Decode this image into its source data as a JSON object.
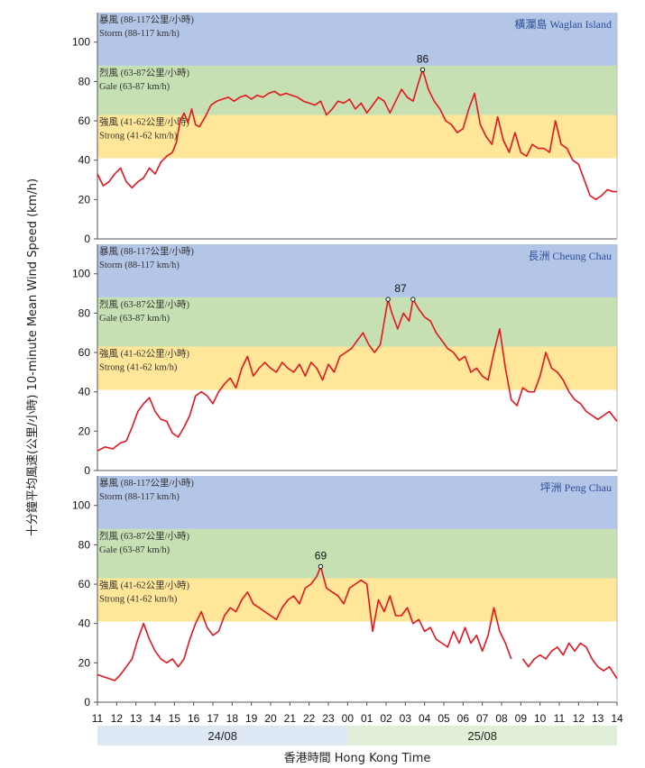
{
  "chart_data": {
    "type": "line",
    "ylabel": "十分鐘平均風速(公里/小時) 10-minute Mean Wind Speed (km/h)",
    "xlabel": "香港時間  Hong Kong Time",
    "x_ticks": [
      "11",
      "12",
      "13",
      "14",
      "15",
      "16",
      "17",
      "18",
      "19",
      "20",
      "21",
      "22",
      "23",
      "00",
      "01",
      "02",
      "03",
      "04",
      "05",
      "06",
      "07",
      "08",
      "09",
      "10",
      "11",
      "12",
      "13",
      "14"
    ],
    "dates": [
      "24/08",
      "25/08"
    ],
    "ylim": [
      0,
      115
    ],
    "y_ticks": [
      "0",
      "20",
      "40",
      "60",
      "80",
      "100"
    ],
    "bands": [
      {
        "zh": "暴風 (88-117公里/小時)",
        "en": "Storm (88-117 km/h)",
        "from": 88,
        "to": 117,
        "color": "#b4c6e7"
      },
      {
        "zh": "烈風 (63-87公里/小時)",
        "en": "Gale (63-87 km/h)",
        "from": 63,
        "to": 88,
        "color": "#c6e0b4"
      },
      {
        "zh": "強風 (41-62公里/小時)",
        "en": "Strong (41-62 km/h)",
        "from": 41,
        "to": 63,
        "color": "#ffe699"
      }
    ],
    "line_color": "#e8141c",
    "panels": [
      {
        "station": "橫瀾島 Waglan Island",
        "peak_label": "86",
        "peaks": [
          {
            "hour": 16.9,
            "value": 86
          }
        ],
        "points": [
          [
            0,
            33
          ],
          [
            0.3,
            27
          ],
          [
            0.6,
            29
          ],
          [
            0.9,
            33
          ],
          [
            1.2,
            36
          ],
          [
            1.5,
            29
          ],
          [
            1.8,
            26
          ],
          [
            2.1,
            29
          ],
          [
            2.4,
            31
          ],
          [
            2.7,
            36
          ],
          [
            3.0,
            33
          ],
          [
            3.3,
            39
          ],
          [
            3.6,
            42
          ],
          [
            3.9,
            44
          ],
          [
            4.1,
            49
          ],
          [
            4.3,
            60
          ],
          [
            4.5,
            64
          ],
          [
            4.7,
            59
          ],
          [
            4.9,
            66
          ],
          [
            5.1,
            58
          ],
          [
            5.3,
            57
          ],
          [
            5.6,
            62
          ],
          [
            5.9,
            68
          ],
          [
            6.2,
            70
          ],
          [
            6.5,
            71
          ],
          [
            6.8,
            72
          ],
          [
            7.1,
            70
          ],
          [
            7.4,
            72
          ],
          [
            7.7,
            73
          ],
          [
            8.0,
            71
          ],
          [
            8.3,
            73
          ],
          [
            8.6,
            72
          ],
          [
            8.9,
            74
          ],
          [
            9.2,
            75
          ],
          [
            9.5,
            73
          ],
          [
            9.8,
            74
          ],
          [
            10.1,
            73
          ],
          [
            10.4,
            72
          ],
          [
            10.7,
            70
          ],
          [
            11.0,
            69
          ],
          [
            11.3,
            68
          ],
          [
            11.6,
            70
          ],
          [
            11.9,
            63
          ],
          [
            12.2,
            66
          ],
          [
            12.5,
            70
          ],
          [
            12.8,
            69
          ],
          [
            13.1,
            71
          ],
          [
            13.4,
            66
          ],
          [
            13.7,
            69
          ],
          [
            14.0,
            64
          ],
          [
            14.3,
            68
          ],
          [
            14.6,
            72
          ],
          [
            14.9,
            70
          ],
          [
            15.2,
            64
          ],
          [
            15.5,
            70
          ],
          [
            15.8,
            76
          ],
          [
            16.1,
            72
          ],
          [
            16.4,
            70
          ],
          [
            16.7,
            80
          ],
          [
            16.9,
            86
          ],
          [
            17.2,
            76
          ],
          [
            17.5,
            70
          ],
          [
            17.8,
            66
          ],
          [
            18.1,
            60
          ],
          [
            18.4,
            58
          ],
          [
            18.7,
            54
          ],
          [
            19.0,
            56
          ],
          [
            19.3,
            66
          ],
          [
            19.6,
            74
          ],
          [
            19.9,
            58
          ],
          [
            20.2,
            52
          ],
          [
            20.5,
            48
          ],
          [
            20.8,
            62
          ],
          [
            21.1,
            50
          ],
          [
            21.4,
            44
          ],
          [
            21.7,
            54
          ],
          [
            22.0,
            44
          ],
          [
            22.3,
            42
          ],
          [
            22.6,
            48
          ],
          [
            22.9,
            46
          ],
          [
            23.2,
            46
          ],
          [
            23.5,
            44
          ],
          [
            23.8,
            60
          ],
          [
            24.1,
            48
          ],
          [
            24.4,
            46
          ],
          [
            24.7,
            40
          ],
          [
            25.0,
            38
          ],
          [
            25.3,
            30
          ],
          [
            25.6,
            22
          ],
          [
            25.9,
            20
          ],
          [
            26.2,
            22
          ],
          [
            26.5,
            25
          ],
          [
            26.8,
            24
          ],
          [
            27.0,
            24
          ]
        ]
      },
      {
        "station": "長洲 Cheung Chau",
        "peak_label": "87",
        "peaks": [
          {
            "hour": 15.1,
            "value": 87
          },
          {
            "hour": 16.4,
            "value": 87
          }
        ],
        "points": [
          [
            0,
            10
          ],
          [
            0.4,
            12
          ],
          [
            0.8,
            11
          ],
          [
            1.2,
            14
          ],
          [
            1.5,
            15
          ],
          [
            1.8,
            22
          ],
          [
            2.1,
            30
          ],
          [
            2.4,
            34
          ],
          [
            2.7,
            37
          ],
          [
            3.0,
            30
          ],
          [
            3.3,
            26
          ],
          [
            3.6,
            25
          ],
          [
            3.9,
            19
          ],
          [
            4.2,
            17
          ],
          [
            4.5,
            22
          ],
          [
            4.8,
            28
          ],
          [
            5.1,
            38
          ],
          [
            5.4,
            40
          ],
          [
            5.7,
            38
          ],
          [
            6.0,
            34
          ],
          [
            6.3,
            40
          ],
          [
            6.6,
            44
          ],
          [
            6.9,
            47
          ],
          [
            7.2,
            42
          ],
          [
            7.5,
            52
          ],
          [
            7.8,
            58
          ],
          [
            8.1,
            48
          ],
          [
            8.4,
            52
          ],
          [
            8.7,
            55
          ],
          [
            9.0,
            52
          ],
          [
            9.3,
            50
          ],
          [
            9.6,
            55
          ],
          [
            9.9,
            52
          ],
          [
            10.2,
            50
          ],
          [
            10.5,
            54
          ],
          [
            10.8,
            48
          ],
          [
            11.1,
            55
          ],
          [
            11.4,
            52
          ],
          [
            11.7,
            46
          ],
          [
            12.0,
            54
          ],
          [
            12.3,
            50
          ],
          [
            12.6,
            58
          ],
          [
            12.9,
            60
          ],
          [
            13.2,
            62
          ],
          [
            13.5,
            66
          ],
          [
            13.8,
            70
          ],
          [
            14.1,
            64
          ],
          [
            14.4,
            60
          ],
          [
            14.7,
            64
          ],
          [
            15.1,
            87
          ],
          [
            15.3,
            80
          ],
          [
            15.6,
            72
          ],
          [
            15.9,
            80
          ],
          [
            16.2,
            76
          ],
          [
            16.4,
            87
          ],
          [
            16.7,
            82
          ],
          [
            17.0,
            78
          ],
          [
            17.3,
            76
          ],
          [
            17.6,
            70
          ],
          [
            17.9,
            66
          ],
          [
            18.2,
            62
          ],
          [
            18.5,
            60
          ],
          [
            18.8,
            56
          ],
          [
            19.1,
            58
          ],
          [
            19.4,
            50
          ],
          [
            19.7,
            52
          ],
          [
            20.0,
            48
          ],
          [
            20.3,
            46
          ],
          [
            20.6,
            60
          ],
          [
            20.9,
            72
          ],
          [
            21.2,
            52
          ],
          [
            21.5,
            36
          ],
          [
            21.8,
            33
          ],
          [
            22.1,
            42
          ],
          [
            22.4,
            40
          ],
          [
            22.7,
            40
          ],
          [
            23.0,
            48
          ],
          [
            23.3,
            60
          ],
          [
            23.6,
            52
          ],
          [
            23.9,
            50
          ],
          [
            24.2,
            46
          ],
          [
            24.5,
            40
          ],
          [
            24.8,
            36
          ],
          [
            25.1,
            34
          ],
          [
            25.4,
            30
          ],
          [
            25.7,
            28
          ],
          [
            26.0,
            26
          ],
          [
            26.3,
            28
          ],
          [
            26.6,
            30
          ],
          [
            27.0,
            25
          ]
        ]
      },
      {
        "station": "坪洲 Peng Chau",
        "peak_label": "69",
        "peaks": [
          {
            "hour": 11.6,
            "value": 69
          }
        ],
        "points": [
          [
            0,
            14
          ],
          [
            0.3,
            13
          ],
          [
            0.6,
            12
          ],
          [
            0.9,
            11
          ],
          [
            1.2,
            14
          ],
          [
            1.5,
            18
          ],
          [
            1.8,
            22
          ],
          [
            2.1,
            32
          ],
          [
            2.4,
            40
          ],
          [
            2.7,
            32
          ],
          [
            3.0,
            26
          ],
          [
            3.3,
            22
          ],
          [
            3.6,
            20
          ],
          [
            3.9,
            22
          ],
          [
            4.2,
            18
          ],
          [
            4.5,
            22
          ],
          [
            4.8,
            32
          ],
          [
            5.1,
            40
          ],
          [
            5.4,
            46
          ],
          [
            5.7,
            38
          ],
          [
            6.0,
            34
          ],
          [
            6.3,
            36
          ],
          [
            6.6,
            44
          ],
          [
            6.9,
            48
          ],
          [
            7.2,
            46
          ],
          [
            7.5,
            52
          ],
          [
            7.8,
            56
          ],
          [
            8.1,
            50
          ],
          [
            8.4,
            48
          ],
          [
            8.7,
            46
          ],
          [
            9.0,
            44
          ],
          [
            9.3,
            42
          ],
          [
            9.6,
            48
          ],
          [
            9.9,
            52
          ],
          [
            10.2,
            54
          ],
          [
            10.5,
            50
          ],
          [
            10.8,
            58
          ],
          [
            11.1,
            60
          ],
          [
            11.4,
            64
          ],
          [
            11.6,
            69
          ],
          [
            11.9,
            58
          ],
          [
            12.2,
            56
          ],
          [
            12.5,
            54
          ],
          [
            12.8,
            50
          ],
          [
            13.1,
            58
          ],
          [
            13.4,
            60
          ],
          [
            13.7,
            62
          ],
          [
            14.0,
            60
          ],
          [
            14.3,
            36
          ],
          [
            14.6,
            52
          ],
          [
            14.9,
            46
          ],
          [
            15.2,
            54
          ],
          [
            15.5,
            44
          ],
          [
            15.8,
            44
          ],
          [
            16.1,
            48
          ],
          [
            16.4,
            40
          ],
          [
            16.7,
            42
          ],
          [
            17.0,
            36
          ],
          [
            17.3,
            38
          ],
          [
            17.6,
            32
          ],
          [
            17.9,
            30
          ],
          [
            18.2,
            28
          ],
          [
            18.5,
            36
          ],
          [
            18.8,
            30
          ],
          [
            19.1,
            38
          ],
          [
            19.4,
            30
          ],
          [
            19.7,
            34
          ],
          [
            20.0,
            26
          ],
          [
            20.3,
            34
          ],
          [
            20.6,
            48
          ],
          [
            20.9,
            36
          ],
          [
            21.2,
            30
          ],
          [
            21.5,
            22
          ],
          [
            21.8,
            null
          ],
          [
            22.1,
            22
          ],
          [
            22.4,
            18
          ],
          [
            22.7,
            22
          ],
          [
            23.0,
            24
          ],
          [
            23.3,
            22
          ],
          [
            23.6,
            26
          ],
          [
            23.9,
            28
          ],
          [
            24.2,
            24
          ],
          [
            24.5,
            30
          ],
          [
            24.8,
            26
          ],
          [
            25.1,
            30
          ],
          [
            25.4,
            28
          ],
          [
            25.7,
            22
          ],
          [
            26.0,
            18
          ],
          [
            26.3,
            16
          ],
          [
            26.6,
            18
          ],
          [
            27.0,
            12
          ]
        ]
      }
    ]
  }
}
